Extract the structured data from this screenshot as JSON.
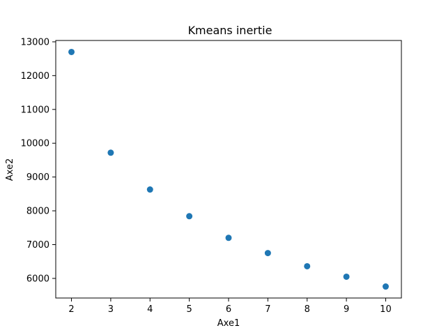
{
  "chart_data": {
    "type": "scatter",
    "title": "Kmeans inertie",
    "xlabel": "Axe1",
    "ylabel": "Axe2",
    "x": [
      2,
      3,
      4,
      5,
      6,
      7,
      8,
      9,
      10
    ],
    "y": [
      12700,
      9720,
      8630,
      7840,
      7200,
      6750,
      6360,
      6050,
      5760
    ],
    "xlim": [
      1.6,
      10.4
    ],
    "ylim": [
      5420,
      13040
    ],
    "x_ticks": [
      2,
      3,
      4,
      5,
      6,
      7,
      8,
      9,
      10
    ],
    "y_ticks": [
      6000,
      7000,
      8000,
      9000,
      10000,
      11000,
      12000,
      13000
    ],
    "grid": false,
    "marker_color": "#1f77b4"
  }
}
